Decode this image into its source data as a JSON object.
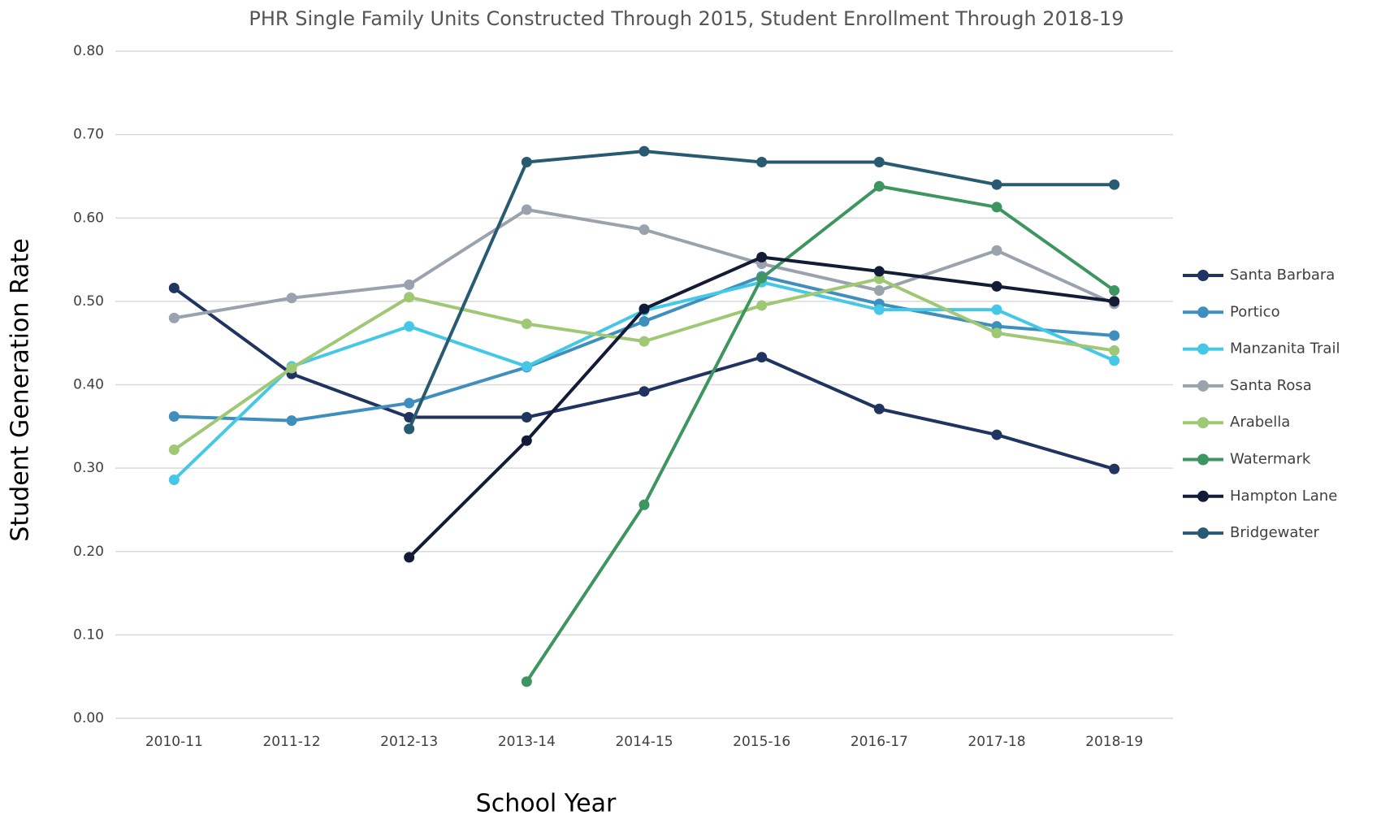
{
  "chart_data": {
    "type": "line",
    "title": "PHR Single Family Units Constructed Through 2015, Student Enrollment Through 2018-19",
    "x_label": "School Year",
    "y_label": "Student Generation Rate",
    "categories": [
      "2010-11",
      "2011-12",
      "2012-13",
      "2013-14",
      "2014-15",
      "2015-16",
      "2016-17",
      "2017-18",
      "2018-19"
    ],
    "ylim": [
      0,
      0.8
    ],
    "yticks": [
      {
        "value": 0,
        "label": "0.00"
      },
      {
        "value": 0.1,
        "label": "0.10"
      },
      {
        "value": 0.2,
        "label": "0.20"
      },
      {
        "value": 0.3,
        "label": "0.30"
      },
      {
        "value": 0.4,
        "label": "0.40"
      },
      {
        "value": 0.5,
        "label": "0.50"
      },
      {
        "value": 0.6,
        "label": "0.60"
      },
      {
        "value": 0.7,
        "label": "0.70"
      },
      {
        "value": 0.8,
        "label": "0.80"
      }
    ],
    "grid": true,
    "legend": "right",
    "series": [
      {
        "name": "Santa Barbara",
        "color": "#1f3461",
        "values": [
          0.516,
          0.413,
          0.361,
          0.361,
          0.392,
          0.433,
          0.371,
          0.34,
          0.299
        ]
      },
      {
        "name": "Portico",
        "color": "#3f8fbe",
        "values": [
          0.362,
          0.357,
          0.378,
          0.421,
          0.476,
          0.53,
          0.497,
          0.47,
          0.459
        ]
      },
      {
        "name": "Manzanita Trail",
        "color": "#45c8e8",
        "values": [
          0.286,
          0.422,
          0.47,
          0.422,
          0.489,
          0.523,
          0.49,
          0.49,
          0.429
        ]
      },
      {
        "name": "Santa Rosa",
        "color": "#9aa3ad",
        "values": [
          0.48,
          0.504,
          0.52,
          0.61,
          0.586,
          0.545,
          0.513,
          0.561,
          0.497
        ]
      },
      {
        "name": "Arabella",
        "color": "#9fc874",
        "values": [
          0.322,
          0.42,
          0.505,
          0.473,
          0.452,
          0.495,
          0.527,
          0.462,
          0.441
        ]
      },
      {
        "name": "Watermark",
        "color": "#3d9560",
        "values": [
          null,
          null,
          null,
          0.044,
          0.256,
          0.528,
          0.638,
          0.613,
          0.513
        ]
      },
      {
        "name": "Hampton Lane",
        "color": "#121c36",
        "values": [
          null,
          null,
          0.193,
          0.333,
          0.491,
          0.553,
          0.536,
          0.518,
          0.5
        ]
      },
      {
        "name": "Bridgewater",
        "color": "#285a72",
        "values": [
          null,
          null,
          0.347,
          0.667,
          0.68,
          0.667,
          0.667,
          0.64,
          0.64
        ]
      }
    ]
  }
}
